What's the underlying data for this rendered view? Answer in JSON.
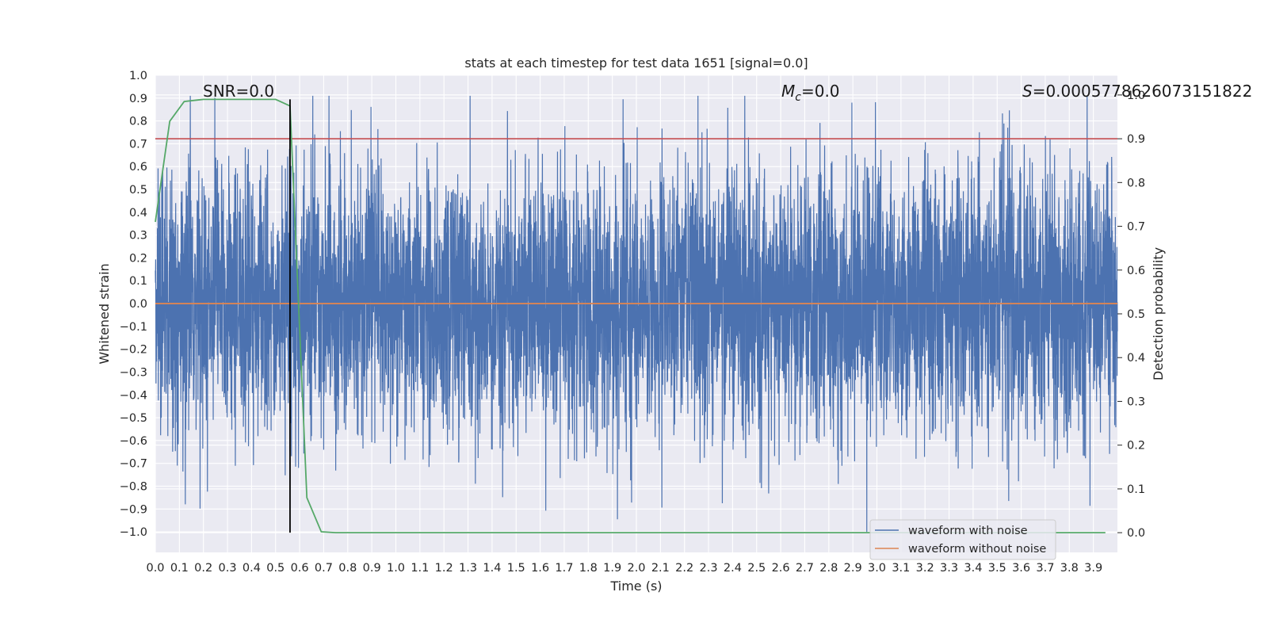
{
  "chart_data": {
    "type": "line",
    "title": "stats at each timestep for test data 1651 [signal=0.0]",
    "xlabel": "Time (s)",
    "ylabel": "Whitened strain",
    "y2label": "Detection probability",
    "xlim": [
      0.0,
      4.0
    ],
    "ylim": [
      -1.09,
      1.0
    ],
    "y2lim": [
      -0.045,
      1.045
    ],
    "xticks": [
      "0.0",
      "0.1",
      "0.2",
      "0.3",
      "0.4",
      "0.5",
      "0.6",
      "0.7",
      "0.8",
      "0.9",
      "1.0",
      "1.1",
      "1.2",
      "1.3",
      "1.4",
      "1.5",
      "1.6",
      "1.7",
      "1.8",
      "1.9",
      "2.0",
      "2.1",
      "2.2",
      "2.3",
      "2.4",
      "2.5",
      "2.6",
      "2.7",
      "2.8",
      "2.9",
      "3.0",
      "3.1",
      "3.2",
      "3.3",
      "3.4",
      "3.5",
      "3.6",
      "3.7",
      "3.8",
      "3.9"
    ],
    "yticks": [
      "1.0",
      "0.9",
      "0.8",
      "0.7",
      "0.6",
      "0.5",
      "0.4",
      "0.3",
      "0.2",
      "0.1",
      "0.0",
      "−0.1",
      "−0.2",
      "−0.3",
      "−0.4",
      "−0.5",
      "−0.6",
      "−0.7",
      "−0.8",
      "−0.9",
      "−1.0"
    ],
    "y2ticks": [
      "1.0",
      "0.9",
      "0.8",
      "0.7",
      "0.6",
      "0.5",
      "0.4",
      "0.3",
      "0.2",
      "0.1",
      "0.0"
    ],
    "annotations": {
      "snr": "SNR=0.0",
      "mc_symbol": "M",
      "mc_sub": "c",
      "mc_value": "=0.0",
      "s_symbol": "S",
      "s_value": "=0.0005778626073151822"
    },
    "noise_series": {
      "name": "waveform with noise",
      "color": "#4c72b0",
      "approx_envelope": [
        -1.0,
        0.91
      ],
      "typical_amplitude": 0.3
    },
    "clean_series": {
      "name": "waveform without noise",
      "color": "#dd8452",
      "y": 0.0
    },
    "probability_series": {
      "color": "#55a868",
      "axis": "right",
      "x": [
        0.0,
        0.06,
        0.12,
        0.2,
        0.3,
        0.4,
        0.5,
        0.56,
        0.63,
        0.69,
        0.75,
        1.0,
        2.0,
        3.0,
        3.95
      ],
      "y": [
        0.71,
        0.94,
        0.985,
        0.99,
        0.99,
        0.99,
        0.99,
        0.975,
        0.08,
        0.002,
        0.0,
        0.0,
        0.0,
        0.0,
        0.0
      ]
    },
    "threshold_line": {
      "color": "#c44e52",
      "y2": 0.9
    },
    "marker_line": {
      "color": "#000000",
      "x": 0.56
    },
    "legend": {
      "placement": "lower-right",
      "entries": [
        "waveform with noise",
        "waveform without noise"
      ]
    }
  }
}
